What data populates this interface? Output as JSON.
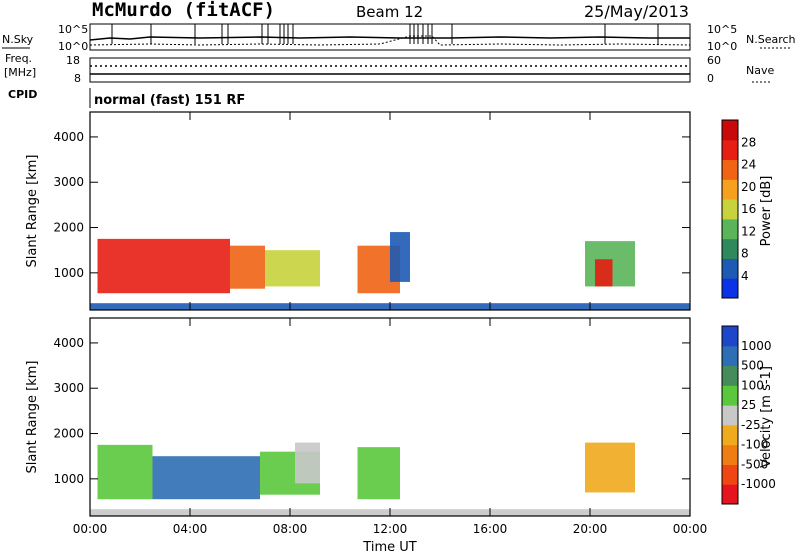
{
  "header": {
    "station": "McMurdo (fitACF)",
    "beam": "Beam 12",
    "date": "25/May/2013"
  },
  "noise_panel": {
    "left_label": "N.Sky",
    "right_label": "N.Search",
    "y_ticks": [
      "10^5",
      "10^0"
    ]
  },
  "freq_panel": {
    "left_label_1": "Freq.",
    "left_label_2": "[MHz]",
    "right_label": "Nave",
    "left_ticks": [
      "18",
      "8"
    ],
    "right_ticks": [
      "60",
      "0"
    ]
  },
  "cpid": {
    "label": "CPID",
    "mode": "normal (fast) 151 RF"
  },
  "colors": {
    "power_scale": [
      "#0a32e6",
      "#1e5ab4",
      "#2e8a5a",
      "#5ab45a",
      "#c8d23c",
      "#f5a01e",
      "#f06414",
      "#e61e14",
      "#c80a0a"
    ],
    "velocity_scale": [
      "#e6141e",
      "#f04614",
      "#f07d14",
      "#f0aa1e",
      "#c8c8c8",
      "#5ac83c",
      "#468c5a",
      "#2e6eb4",
      "#1e46c8"
    ]
  },
  "chart_data": [
    {
      "type": "heatmap",
      "title": "Power",
      "xlabel": "Time UT",
      "ylabel": "Slant Range [km]",
      "x_ticks": [
        "00:00",
        "04:00",
        "08:00",
        "12:00",
        "16:00",
        "20:00",
        "00:00"
      ],
      "y_ticks": [
        "1000",
        "2000",
        "3000",
        "4000"
      ],
      "xlim_hours": [
        0,
        24
      ],
      "ylim_km": [
        180,
        4550
      ],
      "colorbar": {
        "label": "Power [dB]",
        "ticks": [
          "4",
          "8",
          "12",
          "16",
          "20",
          "24",
          "28"
        ],
        "range": [
          0,
          30
        ]
      },
      "regions": [
        {
          "t0": 0.3,
          "t1": 5.6,
          "r0": 550,
          "r1": 1750,
          "level": 24
        },
        {
          "t0": 5.6,
          "t1": 7.0,
          "r0": 650,
          "r1": 1600,
          "level": 22
        },
        {
          "t0": 7.0,
          "t1": 9.2,
          "r0": 700,
          "r1": 1500,
          "level": 14
        },
        {
          "t0": 10.7,
          "t1": 12.4,
          "r0": 550,
          "r1": 1600,
          "level": 22
        },
        {
          "t0": 12.0,
          "t1": 12.8,
          "r0": 800,
          "r1": 1900,
          "level": 6
        },
        {
          "t0": 19.8,
          "t1": 21.8,
          "r0": 700,
          "r1": 1700,
          "level": 10
        },
        {
          "t0": 20.2,
          "t1": 20.9,
          "r0": 700,
          "r1": 1300,
          "level": 24
        },
        {
          "t0": 0.0,
          "t1": 24.0,
          "r0": 180,
          "r1": 330,
          "level": 4
        }
      ]
    },
    {
      "type": "heatmap",
      "title": "Velocity",
      "xlabel": "Time UT",
      "ylabel": "Slant Range [km]",
      "x_ticks": [
        "00:00",
        "04:00",
        "08:00",
        "12:00",
        "16:00",
        "20:00",
        "00:00"
      ],
      "y_ticks": [
        "1000",
        "2000",
        "3000",
        "4000"
      ],
      "xlim_hours": [
        0,
        24
      ],
      "ylim_km": [
        180,
        4550
      ],
      "colorbar": {
        "label": "Velocity [m s-1]",
        "ticks": [
          "-1000",
          "-500",
          "-100",
          "-25",
          "25",
          "100",
          "500",
          "1000"
        ],
        "range": [
          -1200,
          1200
        ]
      },
      "regions": [
        {
          "t0": 0.3,
          "t1": 2.5,
          "r0": 550,
          "r1": 1750,
          "level": 200
        },
        {
          "t0": 2.5,
          "t1": 6.8,
          "r0": 550,
          "r1": 1500,
          "level": 900
        },
        {
          "t0": 6.8,
          "t1": 9.2,
          "r0": 650,
          "r1": 1600,
          "level": 300
        },
        {
          "t0": 8.2,
          "t1": 9.2,
          "r0": 900,
          "r1": 1800,
          "level": -80
        },
        {
          "t0": 10.7,
          "t1": 12.4,
          "r0": 550,
          "r1": 1700,
          "level": 150
        },
        {
          "t0": 19.8,
          "t1": 21.8,
          "r0": 700,
          "r1": 1800,
          "level": -300
        },
        {
          "t0": 0.0,
          "t1": 24.0,
          "r0": 180,
          "r1": 330,
          "level": 50
        }
      ]
    }
  ]
}
